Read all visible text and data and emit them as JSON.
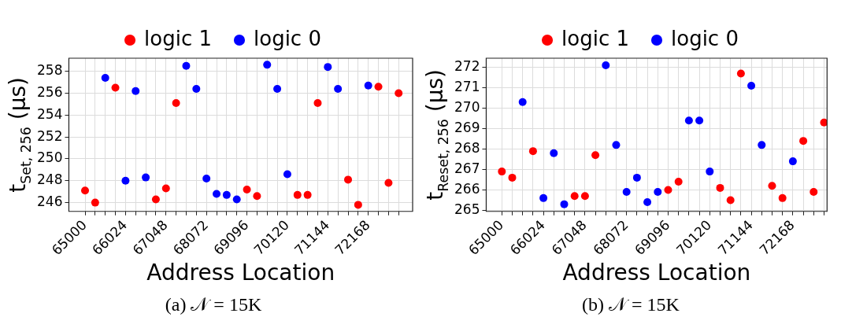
{
  "chart_data": [
    {
      "type": "scatter",
      "xlabel": "Address Location",
      "ylabel": "t$_{Set, 256}$ (μs)",
      "annotations": [
        "(a) 𝒩 = 15K"
      ],
      "legend": "top",
      "grid": true,
      "marker": "circle",
      "xlim": [
        64590,
        73290
      ],
      "ylim": [
        245.2,
        259.2
      ],
      "yticks": [
        246,
        248,
        250,
        252,
        254,
        256,
        258
      ],
      "xticks": [
        65000,
        {
          "value": 65256,
          "label": null
        },
        {
          "value": 65512,
          "label": null
        },
        {
          "value": 65768,
          "label": null
        },
        66024,
        {
          "value": 66280,
          "label": null
        },
        {
          "value": 66536,
          "label": null
        },
        {
          "value": 66792,
          "label": null
        },
        67048,
        {
          "value": 67304,
          "label": null
        },
        {
          "value": 67560,
          "label": null
        },
        {
          "value": 67816,
          "label": null
        },
        68072,
        {
          "value": 68328,
          "label": null
        },
        {
          "value": 68584,
          "label": null
        },
        {
          "value": 68840,
          "label": null
        },
        69096,
        {
          "value": 69352,
          "label": null
        },
        {
          "value": 69608,
          "label": null
        },
        {
          "value": 69864,
          "label": null
        },
        70120,
        {
          "value": 70376,
          "label": null
        },
        {
          "value": 70632,
          "label": null
        },
        {
          "value": 70888,
          "label": null
        },
        71144,
        {
          "value": 71400,
          "label": null
        },
        {
          "value": 71656,
          "label": null
        },
        {
          "value": 71912,
          "label": null
        },
        72168,
        {
          "value": 72424,
          "label": null
        },
        {
          "value": 72680,
          "label": null
        },
        {
          "value": 72936,
          "label": null
        }
      ],
      "series": [
        {
          "name": "logic 1",
          "color": "#ff0000",
          "x": [
            65000,
            65256,
            65768,
            66792,
            67048,
            67304,
            69096,
            69352,
            70376,
            70632,
            70888,
            71656,
            71912,
            72424,
            72680,
            72936
          ],
          "values": [
            247.1,
            246.0,
            256.5,
            246.3,
            247.3,
            255.1,
            247.2,
            246.6,
            246.7,
            246.7,
            255.1,
            248.1,
            245.8,
            256.6,
            247.8,
            256.0
          ]
        },
        {
          "name": "logic 0",
          "color": "#0000ff",
          "x": [
            65512,
            66024,
            66280,
            66536,
            67560,
            67816,
            68072,
            68328,
            68584,
            68840,
            69608,
            69864,
            70120,
            71144,
            71400,
            72168
          ],
          "values": [
            257.4,
            248.0,
            256.2,
            248.3,
            258.5,
            256.4,
            248.2,
            246.8,
            246.7,
            246.3,
            258.6,
            256.4,
            248.6,
            258.4,
            256.4,
            256.7
          ]
        }
      ]
    },
    {
      "type": "scatter",
      "xlabel": "Address Location",
      "ylabel": "t$_{Reset, 256}$ (μs)",
      "annotations": [
        "(b) 𝒩 = 15K"
      ],
      "legend": "top",
      "grid": true,
      "marker": "circle",
      "xlim": [
        64615,
        73010
      ],
      "ylim": [
        264.95,
        272.45
      ],
      "yticks": [
        265,
        266,
        267,
        268,
        269,
        270,
        271,
        272
      ],
      "xticks": [
        65000,
        {
          "value": 65256,
          "label": null
        },
        {
          "value": 65512,
          "label": null
        },
        {
          "value": 65768,
          "label": null
        },
        66024,
        {
          "value": 66280,
          "label": null
        },
        {
          "value": 66536,
          "label": null
        },
        {
          "value": 66792,
          "label": null
        },
        67048,
        {
          "value": 67304,
          "label": null
        },
        {
          "value": 67560,
          "label": null
        },
        {
          "value": 67816,
          "label": null
        },
        68072,
        {
          "value": 68328,
          "label": null
        },
        {
          "value": 68584,
          "label": null
        },
        {
          "value": 68840,
          "label": null
        },
        69096,
        {
          "value": 69352,
          "label": null
        },
        {
          "value": 69608,
          "label": null
        },
        {
          "value": 69864,
          "label": null
        },
        70120,
        {
          "value": 70376,
          "label": null
        },
        {
          "value": 70632,
          "label": null
        },
        {
          "value": 70888,
          "label": null
        },
        71144,
        {
          "value": 71400,
          "label": null
        },
        {
          "value": 71656,
          "label": null
        },
        {
          "value": 71912,
          "label": null
        },
        72168,
        {
          "value": 72424,
          "label": null
        },
        {
          "value": 72680,
          "label": null
        },
        {
          "value": 72936,
          "label": null
        }
      ],
      "series": [
        {
          "name": "logic 1",
          "color": "#ff0000",
          "x": [
            65000,
            65256,
            65768,
            66792,
            67048,
            67304,
            69096,
            69352,
            70376,
            70632,
            70888,
            71656,
            71912,
            72424,
            72680,
            72936
          ],
          "values": [
            266.9,
            266.6,
            267.9,
            265.7,
            265.7,
            267.7,
            266.0,
            266.4,
            266.1,
            265.5,
            271.7,
            266.2,
            265.6,
            268.4,
            265.9,
            269.3
          ]
        },
        {
          "name": "logic 0",
          "color": "#0000ff",
          "x": [
            65512,
            66024,
            66280,
            66536,
            67560,
            67816,
            68072,
            68328,
            68584,
            68840,
            69608,
            69864,
            70120,
            71144,
            71400,
            72168
          ],
          "values": [
            270.3,
            265.6,
            267.8,
            265.3,
            272.1,
            268.2,
            265.9,
            266.6,
            265.4,
            265.9,
            269.4,
            269.4,
            266.9,
            271.1,
            268.2,
            267.4
          ]
        }
      ]
    }
  ]
}
